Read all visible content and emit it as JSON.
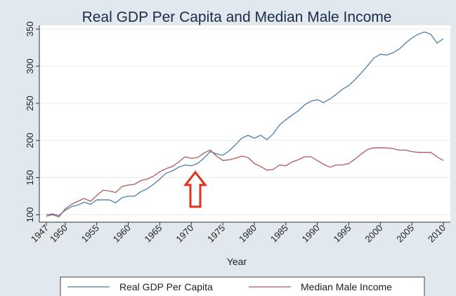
{
  "chart_data": {
    "type": "line",
    "title": "Real GDP Per Capita and Median Male Income",
    "xlabel": "Year",
    "ylabel": "",
    "xlim": [
      1947,
      2010
    ],
    "ylim": [
      90,
      355
    ],
    "yticks": [
      100,
      150,
      200,
      250,
      300,
      350
    ],
    "xticks": [
      1947,
      1950,
      1955,
      1960,
      1965,
      1970,
      1975,
      1980,
      1985,
      1990,
      1995,
      2000,
      2005,
      2010
    ],
    "grid": true,
    "legend_position": "bottom",
    "annotation": "red-up-arrow-at-1971",
    "series": [
      {
        "name": "Real GDP Per Capita",
        "color": "#4e7ea8",
        "x": [
          1947,
          1948,
          1949,
          1950,
          1951,
          1952,
          1953,
          1954,
          1955,
          1956,
          1957,
          1958,
          1959,
          1960,
          1961,
          1962,
          1963,
          1964,
          1965,
          1966,
          1967,
          1968,
          1969,
          1970,
          1971,
          1972,
          1973,
          1974,
          1975,
          1976,
          1977,
          1978,
          1979,
          1980,
          1981,
          1982,
          1983,
          1984,
          1985,
          1986,
          1987,
          1988,
          1989,
          1990,
          1991,
          1992,
          1993,
          1994,
          1995,
          1996,
          1997,
          1998,
          1999,
          2000,
          2001,
          2002,
          2003,
          2004,
          2005,
          2006,
          2007,
          2008,
          2009,
          2010
        ],
        "values": [
          100,
          101,
          99,
          106,
          111,
          113,
          117,
          114,
          120,
          120,
          120,
          116,
          123,
          125,
          125,
          131,
          135,
          141,
          148,
          156,
          159,
          164,
          167,
          166,
          169,
          176,
          185,
          182,
          180,
          186,
          194,
          203,
          207,
          203,
          207,
          201,
          209,
          221,
          228,
          234,
          240,
          248,
          253,
          255,
          251,
          256,
          262,
          269,
          274,
          282,
          291,
          301,
          311,
          316,
          315,
          318,
          323,
          331,
          338,
          343,
          346,
          343,
          331,
          337
        ]
      },
      {
        "name": "Median Male Income",
        "color": "#b05a5a",
        "x": [
          1947,
          1948,
          1949,
          1950,
          1951,
          1952,
          1953,
          1954,
          1955,
          1956,
          1957,
          1958,
          1959,
          1960,
          1961,
          1962,
          1963,
          1964,
          1965,
          1966,
          1967,
          1968,
          1969,
          1970,
          1971,
          1972,
          1973,
          1974,
          1975,
          1976,
          1977,
          1978,
          1979,
          1980,
          1981,
          1982,
          1983,
          1984,
          1985,
          1986,
          1987,
          1988,
          1989,
          1990,
          1991,
          1992,
          1993,
          1994,
          1995,
          1996,
          1997,
          1998,
          1999,
          2000,
          2001,
          2002,
          2003,
          2004,
          2005,
          2006,
          2007,
          2008,
          2009,
          2010
        ],
        "values": [
          98,
          100,
          97,
          108,
          114,
          118,
          122,
          118,
          126,
          133,
          132,
          130,
          138,
          140,
          141,
          146,
          148,
          152,
          158,
          162,
          165,
          171,
          178,
          176,
          177,
          183,
          187,
          179,
          173,
          174,
          176,
          179,
          177,
          169,
          165,
          160,
          161,
          167,
          166,
          171,
          174,
          178,
          178,
          173,
          168,
          164,
          167,
          167,
          169,
          175,
          182,
          188,
          190,
          190,
          190,
          189,
          187,
          187,
          185,
          184,
          184,
          184,
          178,
          173
        ]
      }
    ]
  }
}
